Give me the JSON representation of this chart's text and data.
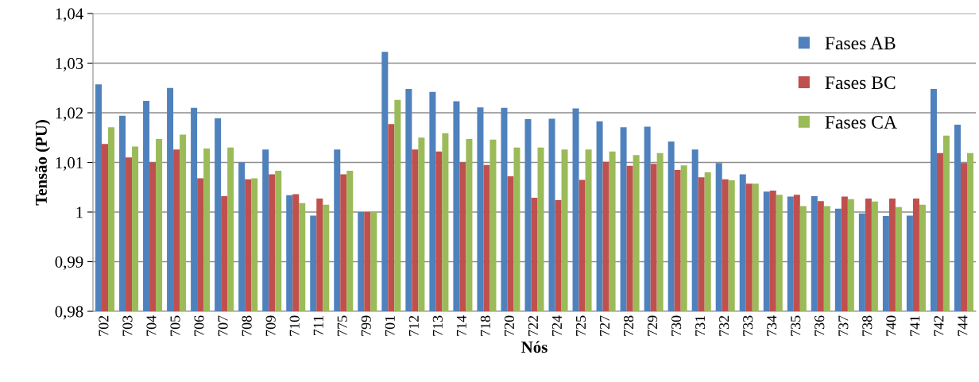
{
  "chart_data": {
    "type": "bar",
    "xlabel": "Nós",
    "ylabel": "Tensão (PU)",
    "categories": [
      "702",
      "703",
      "704",
      "705",
      "706",
      "707",
      "708",
      "709",
      "710",
      "711",
      "775",
      "799",
      "701",
      "712",
      "713",
      "714",
      "718",
      "720",
      "722",
      "724",
      "725",
      "727",
      "728",
      "729",
      "730",
      "731",
      "732",
      "733",
      "734",
      "735",
      "736",
      "737",
      "738",
      "740",
      "741",
      "742",
      "744"
    ],
    "series": [
      {
        "name": "Fases AB",
        "color": "#4f81bd",
        "values": [
          1.0257,
          1.0194,
          1.0224,
          1.025,
          1.021,
          1.0189,
          1.01,
          1.0126,
          1.0034,
          0.9993,
          1.0126,
          1.0,
          1.0323,
          1.0248,
          1.0242,
          1.0223,
          1.0211,
          1.021,
          1.0187,
          1.0188,
          1.0209,
          1.0183,
          1.0171,
          1.0172,
          1.0142,
          1.0126,
          1.0099,
          1.0076,
          1.0041,
          1.0031,
          1.0032,
          1.0007,
          0.9997,
          0.9992,
          0.9993,
          1.0248,
          1.0176
        ]
      },
      {
        "name": "Fases BC",
        "color": "#c0504d",
        "values": [
          1.0137,
          1.011,
          1.01,
          1.0126,
          1.0068,
          1.0032,
          1.0066,
          1.0076,
          1.0036,
          1.0027,
          1.0076,
          1.0,
          1.0177,
          1.0126,
          1.0122,
          1.01,
          1.0095,
          1.0072,
          1.0029,
          1.0024,
          1.0065,
          1.0101,
          1.0093,
          1.0097,
          1.0085,
          1.007,
          1.0066,
          1.0057,
          1.0043,
          1.0035,
          1.0022,
          1.0031,
          1.0027,
          1.0027,
          1.0027,
          1.0119,
          1.0099
        ]
      },
      {
        "name": "Fases CA",
        "color": "#9bbb59",
        "values": [
          1.0171,
          1.0132,
          1.0147,
          1.0156,
          1.0128,
          1.013,
          1.0068,
          1.0083,
          1.0018,
          1.0015,
          1.0083,
          1.0,
          1.0226,
          1.015,
          1.0159,
          1.0147,
          1.0146,
          1.013,
          1.013,
          1.0126,
          1.0126,
          1.0122,
          1.0115,
          1.0119,
          1.0094,
          1.008,
          1.0064,
          1.0057,
          1.0035,
          1.0012,
          1.0012,
          1.0026,
          1.0021,
          1.001,
          1.0015,
          1.0154,
          1.0119
        ]
      }
    ],
    "ylim": [
      0.98,
      1.04
    ],
    "yticks": [
      {
        "value": 0.98,
        "label": "0,98"
      },
      {
        "value": 0.99,
        "label": "0,99"
      },
      {
        "value": 1.0,
        "label": "1"
      },
      {
        "value": 1.01,
        "label": "1,01"
      },
      {
        "value": 1.02,
        "label": "1,02"
      },
      {
        "value": 1.03,
        "label": "1,03"
      },
      {
        "value": 1.04,
        "label": "1,04"
      }
    ],
    "grid": "y",
    "legend": "top right"
  }
}
